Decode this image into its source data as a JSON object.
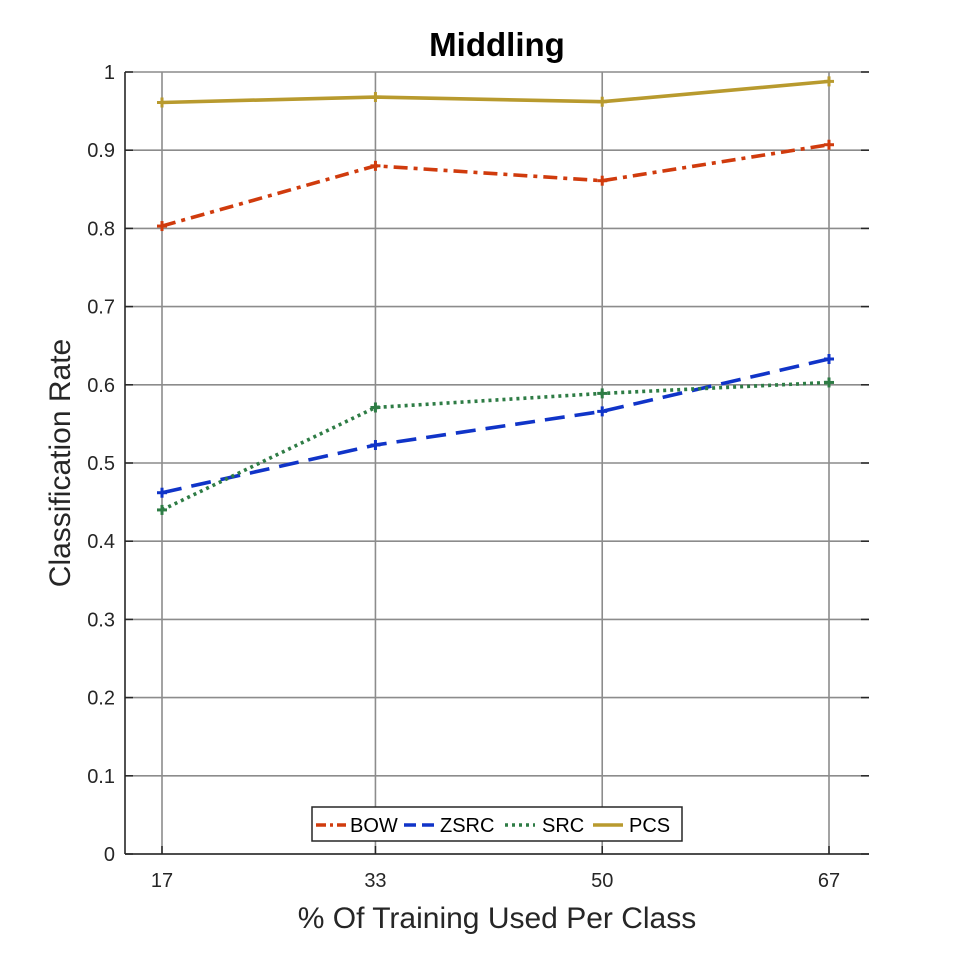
{
  "chart_data": {
    "type": "line",
    "title": "Middling",
    "xlabel": "% Of Training Used Per Class",
    "ylabel": "Classification Rate",
    "categories": [
      "17",
      "33",
      "50",
      "67"
    ],
    "x": [
      17,
      33,
      50,
      67
    ],
    "ylim": [
      0,
      1
    ],
    "yticks": [
      "0",
      "0.1",
      "0.2",
      "0.3",
      "0.4",
      "0.5",
      "0.6",
      "0.7",
      "0.8",
      "0.9",
      "1"
    ],
    "grid": true,
    "legend_position": "bottom-center",
    "series": [
      {
        "name": "BOW",
        "values": [
          0.803,
          0.88,
          0.861,
          0.907
        ],
        "color": "#d03b0d",
        "style": "dashdot"
      },
      {
        "name": "ZSRC",
        "values": [
          0.462,
          0.523,
          0.566,
          0.633
        ],
        "color": "#1034c8",
        "style": "dashed"
      },
      {
        "name": "SRC",
        "values": [
          0.44,
          0.571,
          0.589,
          0.603
        ],
        "color": "#2e7c45",
        "style": "dotted"
      },
      {
        "name": "PCS",
        "values": [
          0.961,
          0.968,
          0.962,
          0.988
        ],
        "color": "#b89a2e",
        "style": "solid"
      }
    ]
  }
}
